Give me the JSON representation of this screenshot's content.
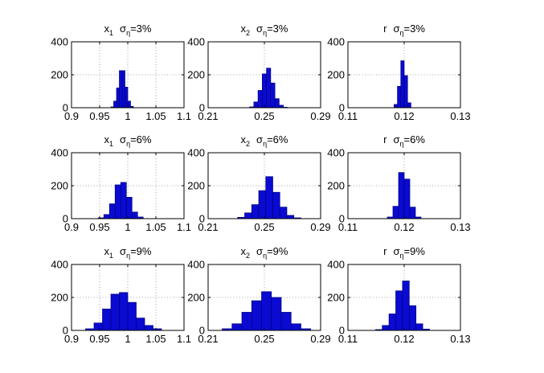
{
  "figure": {
    "background": "#ffffff",
    "bar_color": "#0a0ad2",
    "bar_edge": "#00007a",
    "grid_color": "#8c8c8c"
  },
  "chart_data": [
    {
      "type": "bar",
      "title": {
        "var": "x",
        "sub": "1",
        "sigma": "σ",
        "eta": "η",
        "value": "=3%"
      },
      "xlim": [
        0.9,
        1.1
      ],
      "ylim": [
        0,
        400
      ],
      "xticks": [
        0.9,
        0.95,
        1,
        1.05,
        1.1
      ],
      "xtick_labels": [
        "0.9",
        "0.95",
        "1",
        "1.05",
        "1.1"
      ],
      "yticks": [
        0,
        200,
        400
      ],
      "ytick_labels": [
        "0",
        "200",
        "400"
      ],
      "grid": true,
      "bin_centers": [
        0.9725,
        0.9775,
        0.9825,
        0.9875,
        0.9925,
        0.9975,
        1.0025,
        1.0075
      ],
      "bin_width": 0.005,
      "values": [
        5,
        40,
        120,
        225,
        225,
        125,
        40,
        8
      ]
    },
    {
      "type": "bar",
      "title": {
        "var": "x",
        "sub": "2",
        "sigma": "σ",
        "eta": "η",
        "value": "=3%"
      },
      "xlim": [
        0.21,
        0.29
      ],
      "ylim": [
        0,
        400
      ],
      "xticks": [
        0.21,
        0.25,
        0.29
      ],
      "xtick_labels": [
        "0.21",
        "0.25",
        "0.29"
      ],
      "yticks": [
        0,
        200,
        400
      ],
      "ytick_labels": [
        "0",
        "200",
        "400"
      ],
      "grid": true,
      "bin_centers": [
        0.241,
        0.244,
        0.247,
        0.25,
        0.253,
        0.256,
        0.259,
        0.262,
        0.265
      ],
      "bin_width": 0.003,
      "values": [
        5,
        35,
        105,
        205,
        240,
        150,
        55,
        15,
        3
      ]
    },
    {
      "type": "bar",
      "title": {
        "var": "r",
        "sub": "",
        "sigma": "σ",
        "eta": "η",
        "value": "=3%"
      },
      "xlim": [
        0.11,
        0.13
      ],
      "ylim": [
        0,
        400
      ],
      "xticks": [
        0.11,
        0.12,
        0.13
      ],
      "xtick_labels": [
        "0.11",
        "0.12",
        "0.13"
      ],
      "yticks": [
        0,
        200,
        400
      ],
      "ytick_labels": [
        "0",
        "200",
        "400"
      ],
      "grid": true,
      "bin_centers": [
        0.1185,
        0.1191,
        0.1197,
        0.1203,
        0.1209
      ],
      "bin_width": 0.0006,
      "values": [
        20,
        130,
        285,
        195,
        30
      ]
    },
    {
      "type": "bar",
      "title": {
        "var": "x",
        "sub": "1",
        "sigma": "σ",
        "eta": "η",
        "value": "=6%"
      },
      "xlim": [
        0.9,
        1.1
      ],
      "ylim": [
        0,
        400
      ],
      "xticks": [
        0.9,
        0.95,
        1,
        1.05,
        1.1
      ],
      "xtick_labels": [
        "0.9",
        "0.95",
        "1",
        "1.05",
        "1.1"
      ],
      "yticks": [
        0,
        200,
        400
      ],
      "ytick_labels": [
        "0",
        "200",
        "400"
      ],
      "grid": true,
      "bin_centers": [
        0.9525,
        0.9625,
        0.9725,
        0.9825,
        0.9925,
        1.0025,
        1.0125,
        1.0225
      ],
      "bin_width": 0.01,
      "values": [
        5,
        25,
        90,
        205,
        220,
        130,
        40,
        10
      ]
    },
    {
      "type": "bar",
      "title": {
        "var": "x",
        "sub": "2",
        "sigma": "σ",
        "eta": "η",
        "value": "=6%"
      },
      "xlim": [
        0.21,
        0.29
      ],
      "ylim": [
        0,
        400
      ],
      "xticks": [
        0.21,
        0.25,
        0.29
      ],
      "xtick_labels": [
        "0.21",
        "0.25",
        "0.29"
      ],
      "yticks": [
        0,
        200,
        400
      ],
      "ytick_labels": [
        "0",
        "200",
        "400"
      ],
      "grid": true,
      "bin_centers": [
        0.2335,
        0.2385,
        0.2435,
        0.2485,
        0.2535,
        0.2585,
        0.2635,
        0.2685,
        0.2735
      ],
      "bin_width": 0.005,
      "values": [
        8,
        35,
        85,
        170,
        255,
        160,
        70,
        20,
        5
      ]
    },
    {
      "type": "bar",
      "title": {
        "var": "r",
        "sub": "",
        "sigma": "σ",
        "eta": "η",
        "value": "=6%"
      },
      "xlim": [
        0.11,
        0.13
      ],
      "ylim": [
        0,
        400
      ],
      "xticks": [
        0.11,
        0.12,
        0.13
      ],
      "xtick_labels": [
        "0.11",
        "0.12",
        "0.13"
      ],
      "yticks": [
        0,
        200,
        400
      ],
      "ytick_labels": [
        "0",
        "200",
        "400"
      ],
      "grid": true,
      "bin_centers": [
        0.1175,
        0.1185,
        0.1195,
        0.1205,
        0.1215,
        0.1225
      ],
      "bin_width": 0.001,
      "values": [
        10,
        75,
        280,
        240,
        70,
        10
      ]
    },
    {
      "type": "bar",
      "title": {
        "var": "x",
        "sub": "1",
        "sigma": "σ",
        "eta": "η",
        "value": "=9%"
      },
      "xlim": [
        0.9,
        1.1
      ],
      "ylim": [
        0,
        400
      ],
      "xticks": [
        0.9,
        0.95,
        1,
        1.05,
        1.1
      ],
      "xtick_labels": [
        "0.9",
        "0.95",
        "1",
        "1.05",
        "1.1"
      ],
      "yticks": [
        0,
        200,
        400
      ],
      "ytick_labels": [
        "0",
        "200",
        "400"
      ],
      "grid": true,
      "bin_centers": [
        0.9325,
        0.9475,
        0.9625,
        0.9775,
        0.9925,
        1.0075,
        1.0225,
        1.0375,
        1.0525
      ],
      "bin_width": 0.015,
      "values": [
        10,
        45,
        130,
        220,
        230,
        170,
        75,
        30,
        10
      ]
    },
    {
      "type": "bar",
      "title": {
        "var": "x",
        "sub": "2",
        "sigma": "σ",
        "eta": "η",
        "value": "=9%"
      },
      "xlim": [
        0.21,
        0.29
      ],
      "ylim": [
        0,
        400
      ],
      "xticks": [
        0.21,
        0.25,
        0.29
      ],
      "xtick_labels": [
        "0.21",
        "0.25",
        "0.29"
      ],
      "yticks": [
        0,
        200,
        400
      ],
      "ytick_labels": [
        "0",
        "200",
        "400"
      ],
      "grid": true,
      "bin_centers": [
        0.2235,
        0.2305,
        0.2375,
        0.2445,
        0.2515,
        0.2585,
        0.2655,
        0.2725,
        0.2795
      ],
      "bin_width": 0.007,
      "values": [
        10,
        40,
        110,
        180,
        235,
        200,
        110,
        40,
        10
      ]
    },
    {
      "type": "bar",
      "title": {
        "var": "r",
        "sub": "",
        "sigma": "σ",
        "eta": "η",
        "value": "=9%"
      },
      "xlim": [
        0.11,
        0.13
      ],
      "ylim": [
        0,
        400
      ],
      "xticks": [
        0.11,
        0.12,
        0.13
      ],
      "xtick_labels": [
        "0.11",
        "0.12",
        "0.13"
      ],
      "yticks": [
        0,
        200,
        400
      ],
      "ytick_labels": [
        "0",
        "200",
        "400"
      ],
      "grid": true,
      "bin_centers": [
        0.1155,
        0.1167,
        0.1179,
        0.1191,
        0.1203,
        0.1215,
        0.1227,
        0.1239
      ],
      "bin_width": 0.0012,
      "values": [
        5,
        30,
        100,
        240,
        300,
        150,
        40,
        8
      ]
    }
  ]
}
